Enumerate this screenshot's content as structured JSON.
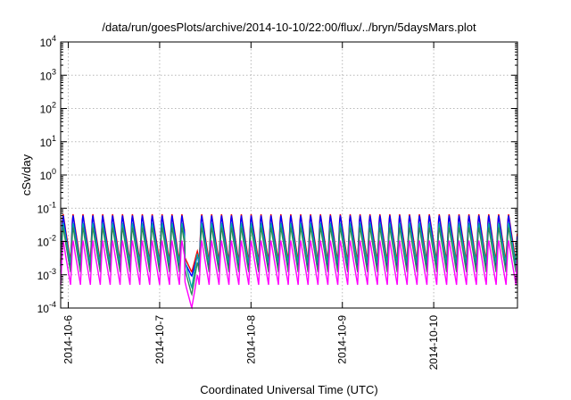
{
  "chart_data": {
    "type": "line",
    "title": "/data/run/goesPlots/archive/2014-10-10/22:00/flux/../bryn/5daysMars.plot",
    "xlabel": "Coordinated Universal Time (UTC)",
    "ylabel": "cSv/day",
    "yscale": "log",
    "ylim": [
      0.0001,
      10000
    ],
    "xlim": [
      "2014-10-05 22:00",
      "2014-10-10 22:00"
    ],
    "grid": true,
    "y_ticks": [
      {
        "value": 0.0001,
        "base": "10",
        "exp": "-4"
      },
      {
        "value": 0.001,
        "base": "10",
        "exp": "-3"
      },
      {
        "value": 0.01,
        "base": "10",
        "exp": "-2"
      },
      {
        "value": 0.1,
        "base": "10",
        "exp": "-1"
      },
      {
        "value": 1,
        "base": "10",
        "exp": "0"
      },
      {
        "value": 10,
        "base": "10",
        "exp": "1"
      },
      {
        "value": 100,
        "base": "10",
        "exp": "2"
      },
      {
        "value": 1000,
        "base": "10",
        "exp": "3"
      },
      {
        "value": 10000,
        "base": "10",
        "exp": "4"
      }
    ],
    "x_ticks": [
      "2014-10-6",
      "2014-10-7",
      "2014-10-8",
      "2014-10-9",
      "2014-10-10"
    ],
    "x_tick_dates": [
      "2014-10-06 00:00",
      "2014-10-07 00:00",
      "2014-10-08 00:00",
      "2014-10-09 00:00",
      "2014-10-10 00:00"
    ],
    "oscillation_period_hours": 2.6,
    "dropout": {
      "start": "2014-10-07 06:30",
      "end": "2014-10-07 10:00"
    },
    "series": [
      {
        "color": "#ff0000",
        "peak": 0.075,
        "trough": 0.0025,
        "dropout_min": 0.0012
      },
      {
        "color": "#0000ff",
        "peak": 0.07,
        "trough": 0.0018,
        "dropout_min": 0.0009
      },
      {
        "color": "#00a8a8",
        "peak": 0.04,
        "trough": 0.0022,
        "dropout_min": 0.0004
      },
      {
        "color": "#2e8b57",
        "peak": 0.03,
        "trough": 0.0012,
        "dropout_min": 0.00025
      },
      {
        "color": "#ff00ff",
        "peak": 0.012,
        "trough": 0.0005,
        "dropout_min": 0.0001
      }
    ]
  }
}
